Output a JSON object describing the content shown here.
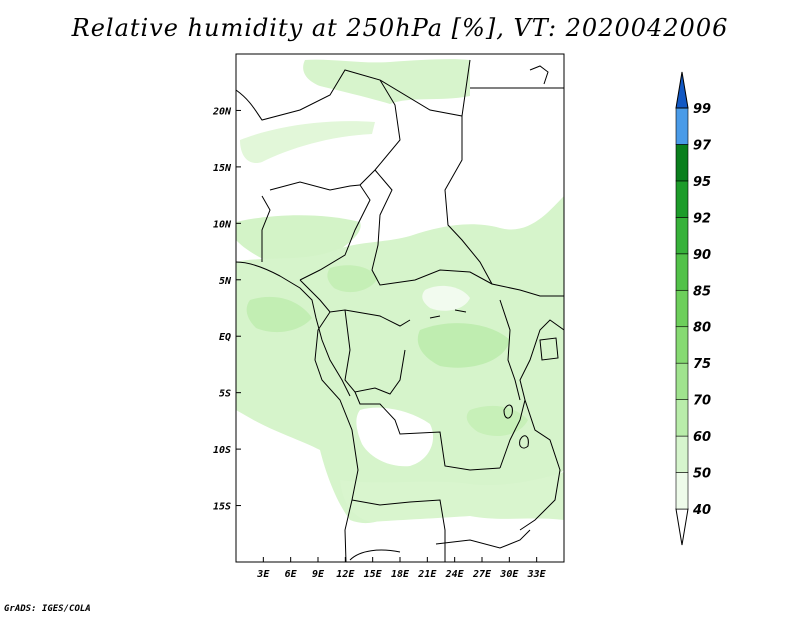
{
  "title": "Relative humidity at 250hPa [%], VT: 2020042006",
  "credit": "GrADS: IGES/COLA",
  "map": {
    "lon_range": [
      0,
      36
    ],
    "lat_range": [
      -20,
      25
    ],
    "variable": "Relative humidity",
    "level": "250hPa",
    "units": "%",
    "valid_time": "2020042006"
  },
  "axes": {
    "x_ticks": [
      {
        "lon": 3,
        "label": "3E"
      },
      {
        "lon": 6,
        "label": "6E"
      },
      {
        "lon": 9,
        "label": "9E"
      },
      {
        "lon": 12,
        "label": "12E"
      },
      {
        "lon": 15,
        "label": "15E"
      },
      {
        "lon": 18,
        "label": "18E"
      },
      {
        "lon": 21,
        "label": "21E"
      },
      {
        "lon": 24,
        "label": "24E"
      },
      {
        "lon": 27,
        "label": "27E"
      },
      {
        "lon": 30,
        "label": "30E"
      },
      {
        "lon": 33,
        "label": "33E"
      }
    ],
    "y_ticks": [
      {
        "lat": 20,
        "label": "20N"
      },
      {
        "lat": 15,
        "label": "15N"
      },
      {
        "lat": 10,
        "label": "10N"
      },
      {
        "lat": 5,
        "label": "5N"
      },
      {
        "lat": 0,
        "label": "EQ"
      },
      {
        "lat": -5,
        "label": "5S"
      },
      {
        "lat": -10,
        "label": "10S"
      },
      {
        "lat": -15,
        "label": "15S"
      }
    ]
  },
  "colorbar": {
    "levels": [
      "40",
      "50",
      "60",
      "70",
      "75",
      "80",
      "85",
      "90",
      "92",
      "95",
      "97",
      "99"
    ],
    "colors": [
      "#eefbea",
      "#d6f5cd",
      "#b9edaa",
      "#a0e38e",
      "#86da72",
      "#6dcf5b",
      "#52c249",
      "#37b23a",
      "#1d9c2a",
      "#0a7f1d",
      "#4a9be8",
      "#2b78d8",
      "#1258c3"
    ]
  },
  "colors": {
    "green_light": "#e6f8de",
    "green_mid": "#c8efb9",
    "border": "#000000"
  }
}
